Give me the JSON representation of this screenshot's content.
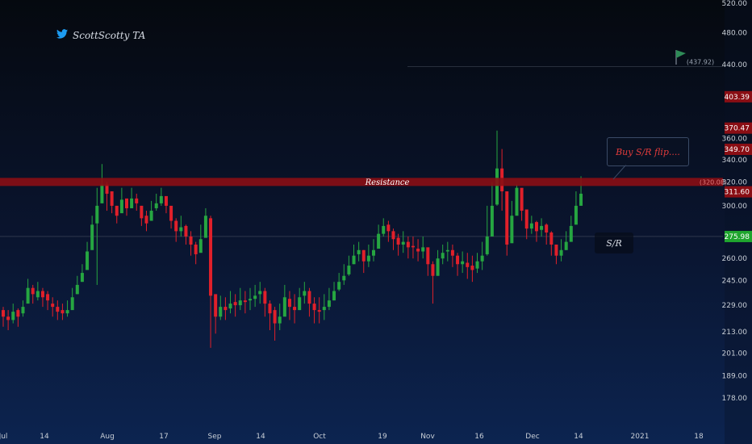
{
  "watermark": {
    "text": "ScottScotty TA",
    "icon": "twitter-bird-icon"
  },
  "colors": {
    "up": "#26a641",
    "down": "#e0202a",
    "resistance": "#8a0e14",
    "support_line": "#5b6473",
    "flag": "#2e8b57"
  },
  "annotations": {
    "resistance_label": "Resistance",
    "resistance_price": "(320.08)",
    "flip_note": "Buy S/R flip....",
    "sr_label": "S/R",
    "target_price": "(437.92)"
  },
  "chart_data": {
    "type": "candlestick",
    "title": "",
    "xlabel": "",
    "ylabel": "",
    "ylim": [
      170,
      520
    ],
    "y_scale": "log",
    "grid": false,
    "y_ticks": [
      "520.00",
      "480.00",
      "440.00",
      "403.39",
      "370.47",
      "360.00",
      "349.70",
      "340.00",
      "320.00",
      "311.60",
      "300.00",
      "275.98",
      "260.00",
      "245.00",
      "229.00",
      "213.00",
      "201.00",
      "189.00",
      "178.00"
    ],
    "x_ticks": [
      "Jul",
      "14",
      "Aug",
      "17",
      "Sep",
      "14",
      "Oct",
      "19",
      "Nov",
      "16",
      "Dec",
      "14",
      "2021",
      "18"
    ],
    "price_tags": [
      {
        "label": "403.39",
        "value": 403.39,
        "color": "#8a0e14"
      },
      {
        "label": "370.47",
        "value": 370.47,
        "color": "#8a0e14"
      },
      {
        "label": "349.70",
        "value": 349.7,
        "color": "#8a0e14"
      },
      {
        "label": "311.60",
        "value": 311.6,
        "color": "#8a0e14"
      },
      {
        "label": "275.98",
        "value": 275.98,
        "color": "#1fa52e"
      }
    ],
    "resistance_level": 320.08,
    "support_level": 276,
    "target_level": 437.92,
    "candles_close": [
      222,
      220,
      225,
      222,
      228,
      240,
      236,
      238,
      234,
      232,
      228,
      225,
      224,
      226,
      234,
      242,
      250,
      265,
      285,
      300,
      318,
      310,
      300,
      292,
      305,
      298,
      306,
      302,
      290,
      286,
      296,
      302,
      308,
      300,
      288,
      280,
      283,
      276,
      270,
      263,
      274,
      292,
      235,
      222,
      228,
      226,
      230,
      229,
      232,
      231,
      233,
      235,
      238,
      230,
      224,
      218,
      222,
      234,
      228,
      226,
      234,
      238,
      230,
      226,
      225,
      228,
      232,
      238,
      244,
      248,
      255,
      262,
      266,
      258,
      262,
      266,
      278,
      284,
      280,
      274,
      270,
      272,
      268,
      268,
      265,
      268,
      256,
      248,
      260,
      264,
      266,
      262,
      256,
      258,
      254,
      252,
      258,
      262,
      276,
      300,
      332,
      312,
      270,
      292,
      315,
      296,
      282,
      286,
      280,
      284,
      279,
      270,
      262,
      266,
      272,
      284,
      300,
      310
    ],
    "candles_high": [
      228,
      226,
      230,
      227,
      232,
      246,
      242,
      244,
      240,
      238,
      234,
      232,
      230,
      232,
      240,
      248,
      256,
      272,
      292,
      315,
      336,
      320,
      312,
      300,
      315,
      305,
      315,
      310,
      300,
      296,
      304,
      310,
      315,
      305,
      296,
      290,
      292,
      285,
      280,
      272,
      285,
      298,
      292,
      232,
      235,
      234,
      238,
      236,
      240,
      238,
      240,
      242,
      244,
      240,
      232,
      228,
      230,
      242,
      238,
      236,
      240,
      244,
      240,
      234,
      234,
      236,
      240,
      244,
      250,
      256,
      262,
      270,
      272,
      266,
      270,
      274,
      285,
      290,
      288,
      282,
      278,
      280,
      276,
      276,
      274,
      276,
      266,
      258,
      266,
      270,
      272,
      270,
      264,
      265,
      264,
      262,
      264,
      272,
      300,
      320,
      368,
      350,
      286,
      304,
      318,
      305,
      292,
      292,
      288,
      290,
      286,
      280,
      270,
      274,
      280,
      292,
      312,
      325
    ],
    "candles_low": [
      216,
      214,
      218,
      216,
      222,
      232,
      230,
      232,
      228,
      226,
      222,
      220,
      220,
      222,
      228,
      236,
      244,
      258,
      278,
      242,
      306,
      296,
      294,
      286,
      296,
      292,
      298,
      296,
      284,
      280,
      290,
      296,
      300,
      294,
      282,
      272,
      276,
      270,
      262,
      256,
      266,
      280,
      204,
      212,
      220,
      220,
      224,
      222,
      226,
      224,
      226,
      228,
      230,
      222,
      214,
      208,
      214,
      226,
      220,
      218,
      226,
      230,
      222,
      218,
      218,
      220,
      226,
      232,
      238,
      242,
      248,
      256,
      258,
      250,
      254,
      258,
      270,
      276,
      272,
      266,
      262,
      264,
      260,
      260,
      258,
      260,
      248,
      230,
      252,
      256,
      258,
      254,
      248,
      250,
      246,
      244,
      250,
      252,
      262,
      290,
      300,
      296,
      262,
      282,
      296,
      288,
      274,
      278,
      272,
      276,
      270,
      262,
      256,
      258,
      266,
      278,
      292,
      302
    ],
    "candles_open": [
      226,
      222,
      220,
      226,
      224,
      230,
      240,
      234,
      238,
      236,
      230,
      228,
      226,
      224,
      226,
      236,
      244,
      252,
      266,
      286,
      302,
      318,
      312,
      300,
      294,
      306,
      298,
      306,
      300,
      292,
      288,
      298,
      302,
      308,
      300,
      288,
      280,
      284,
      276,
      270,
      264,
      275,
      290,
      236,
      222,
      228,
      227,
      231,
      229,
      232,
      232,
      233,
      236,
      238,
      230,
      226,
      218,
      222,
      233,
      228,
      226,
      235,
      238,
      230,
      226,
      226,
      228,
      232,
      239,
      245,
      249,
      256,
      263,
      266,
      258,
      262,
      267,
      278,
      285,
      280,
      275,
      270,
      272,
      269,
      267,
      265,
      268,
      256,
      248,
      260,
      265,
      266,
      262,
      256,
      257,
      255,
      253,
      258,
      263,
      276,
      301,
      332,
      312,
      271,
      292,
      315,
      297,
      282,
      287,
      281,
      285,
      279,
      270,
      262,
      266,
      272,
      285,
      300
    ]
  }
}
